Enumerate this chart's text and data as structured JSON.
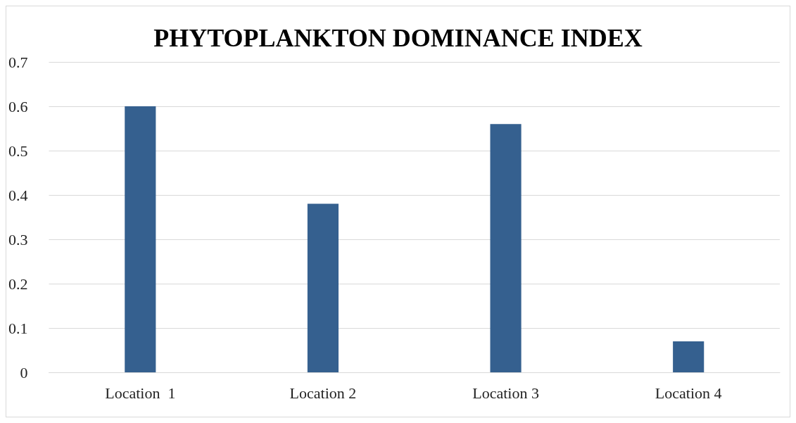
{
  "chart_data": {
    "type": "bar",
    "title": "PHYTOPLANKTON DOMINANCE INDEX",
    "categories": [
      "Location  1",
      "Location 2",
      "Location 3",
      "Location 4"
    ],
    "values": [
      0.6,
      0.38,
      0.56,
      0.07
    ],
    "color": "#35608f",
    "ylim": [
      0,
      0.7
    ],
    "yticks": [
      0,
      0.1,
      0.2,
      0.3,
      0.4,
      0.5,
      0.6,
      0.7
    ],
    "grid": "y"
  }
}
